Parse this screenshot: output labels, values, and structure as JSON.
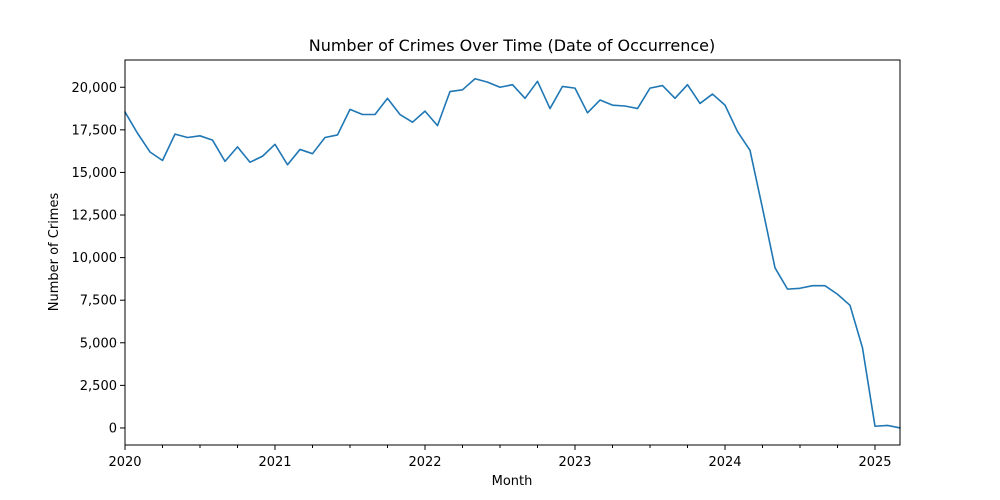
{
  "chart_data": {
    "type": "line",
    "title": "Number of Crimes Over Time (Date of Occurrence)",
    "xlabel": "Month",
    "ylabel": "Number of Crimes",
    "xlim": [
      "2020-01",
      "2025-03"
    ],
    "ylim": [
      -1000,
      21600
    ],
    "grid": false,
    "line_color": "#1f77b4",
    "x_ticks": [
      "2020",
      "2021",
      "2022",
      "2023",
      "2024",
      "2025"
    ],
    "y_ticks": [
      {
        "value": 0,
        "label": "0"
      },
      {
        "value": 2500,
        "label": "2,500"
      },
      {
        "value": 5000,
        "label": "5,000"
      },
      {
        "value": 7500,
        "label": "7,500"
      },
      {
        "value": 10000,
        "label": "10,000"
      },
      {
        "value": 12500,
        "label": "12,500"
      },
      {
        "value": 15000,
        "label": "15,000"
      },
      {
        "value": 17500,
        "label": "17,500"
      },
      {
        "value": 20000,
        "label": "20,000"
      }
    ],
    "series": [
      {
        "x": [
          "2020-01",
          "2020-02",
          "2020-03",
          "2020-04",
          "2020-05",
          "2020-06",
          "2020-07",
          "2020-08",
          "2020-09",
          "2020-10",
          "2020-11",
          "2020-12",
          "2021-01",
          "2021-02",
          "2021-03",
          "2021-04",
          "2021-05",
          "2021-06",
          "2021-07",
          "2021-08",
          "2021-09",
          "2021-10",
          "2021-11",
          "2021-12",
          "2022-01",
          "2022-02",
          "2022-03",
          "2022-04",
          "2022-05",
          "2022-06",
          "2022-07",
          "2022-08",
          "2022-09",
          "2022-10",
          "2022-11",
          "2022-12",
          "2023-01",
          "2023-02",
          "2023-03",
          "2023-04",
          "2023-05",
          "2023-06",
          "2023-07",
          "2023-08",
          "2023-09",
          "2023-10",
          "2023-11",
          "2023-12",
          "2024-01",
          "2024-02",
          "2024-03",
          "2024-04",
          "2024-05",
          "2024-06",
          "2024-07",
          "2024-08",
          "2024-09",
          "2024-10",
          "2024-11",
          "2024-12",
          "2025-01",
          "2025-02",
          "2025-03"
        ],
        "values": [
          18550,
          17300,
          16200,
          15700,
          17250,
          17050,
          17150,
          16900,
          15650,
          16500,
          15600,
          15950,
          16650,
          15450,
          16350,
          16100,
          17050,
          17200,
          18700,
          18400,
          18400,
          19350,
          18400,
          17950,
          18600,
          17750,
          19750,
          19850,
          20500,
          20300,
          20000,
          20150,
          19350,
          20350,
          18750,
          20050,
          19950,
          18500,
          19250,
          18950,
          18900,
          18750,
          19950,
          20100,
          19350,
          20150,
          19050,
          19600,
          18950,
          17400,
          16300,
          12900,
          9400,
          8150,
          8200,
          8350,
          8350,
          7850,
          7200,
          4700,
          100,
          150,
          0
        ]
      }
    ]
  }
}
